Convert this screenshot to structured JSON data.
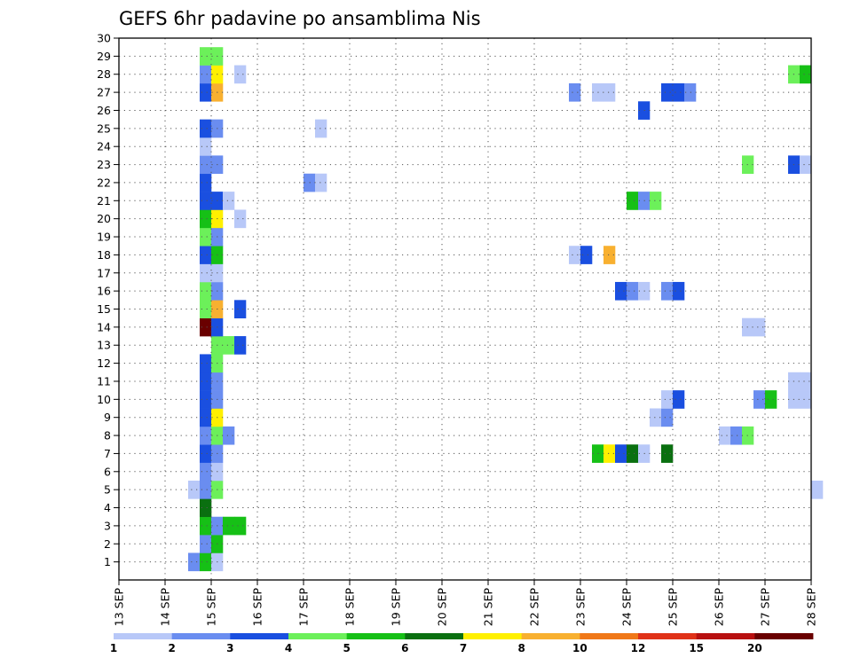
{
  "chart_data": {
    "type": "heatmap",
    "title": "GEFS 6hr padavine po ansamblima Nis",
    "x_ticks": [
      "13 SEP",
      "14 SEP",
      "15 SEP",
      "16 SEP",
      "17 SEP",
      "18 SEP",
      "19 SEP",
      "20 SEP",
      "21 SEP",
      "22 SEP",
      "23 SEP",
      "24 SEP",
      "25 SEP",
      "26 SEP",
      "27 SEP",
      "28 SEP"
    ],
    "xlim_days": [
      13,
      28
    ],
    "ylim": [
      0,
      30
    ],
    "y_ticks": [
      1,
      2,
      3,
      4,
      5,
      6,
      7,
      8,
      9,
      10,
      11,
      12,
      13,
      14,
      15,
      16,
      17,
      18,
      19,
      20,
      21,
      22,
      23,
      24,
      25,
      26,
      27,
      28,
      29,
      30
    ],
    "grid": "dotted",
    "time_step_hours": 6,
    "colorbar": {
      "labels": [
        "1",
        "2",
        "3",
        "4",
        "5",
        "6",
        "7",
        "8",
        "10",
        "12",
        "15",
        "20"
      ],
      "colors": [
        "#b8c8f8",
        "#6a8df0",
        "#1a4fe0",
        "#6cf05a",
        "#16c016",
        "#0a7010",
        "#fff000",
        "#f8b030",
        "#f07818",
        "#e03218",
        "#b81010",
        "#6a0000"
      ]
    },
    "cells": [
      {
        "day": 14.5,
        "y": 1,
        "c": 1
      },
      {
        "day": 14.75,
        "y": 1,
        "c": 4
      },
      {
        "day": 15.0,
        "y": 1,
        "c": 0
      },
      {
        "day": 14.75,
        "y": 2,
        "c": 1
      },
      {
        "day": 15.0,
        "y": 2,
        "c": 4
      },
      {
        "day": 14.75,
        "y": 3,
        "c": 4
      },
      {
        "day": 15.0,
        "y": 3,
        "c": 1
      },
      {
        "day": 15.25,
        "y": 3,
        "c": 4
      },
      {
        "day": 15.5,
        "y": 3,
        "c": 4
      },
      {
        "day": 14.75,
        "y": 4,
        "c": 5
      },
      {
        "day": 14.5,
        "y": 5,
        "c": 0
      },
      {
        "day": 14.75,
        "y": 5,
        "c": 1
      },
      {
        "day": 15.0,
        "y": 5,
        "c": 3
      },
      {
        "day": 28.0,
        "y": 5,
        "c": 0
      },
      {
        "day": 14.75,
        "y": 6,
        "c": 1
      },
      {
        "day": 15.0,
        "y": 6,
        "c": 0
      },
      {
        "day": 14.75,
        "y": 7,
        "c": 2
      },
      {
        "day": 15.0,
        "y": 7,
        "c": 1
      },
      {
        "day": 23.25,
        "y": 7,
        "c": 4
      },
      {
        "day": 23.5,
        "y": 7,
        "c": 6
      },
      {
        "day": 23.75,
        "y": 7,
        "c": 2
      },
      {
        "day": 24.0,
        "y": 7,
        "c": 5
      },
      {
        "day": 24.25,
        "y": 7,
        "c": 0
      },
      {
        "day": 24.75,
        "y": 7,
        "c": 5
      },
      {
        "day": 14.75,
        "y": 8,
        "c": 1
      },
      {
        "day": 15.0,
        "y": 8,
        "c": 3
      },
      {
        "day": 15.25,
        "y": 8,
        "c": 1
      },
      {
        "day": 26.0,
        "y": 8,
        "c": 0
      },
      {
        "day": 26.25,
        "y": 8,
        "c": 1
      },
      {
        "day": 26.5,
        "y": 8,
        "c": 3
      },
      {
        "day": 14.75,
        "y": 9,
        "c": 2
      },
      {
        "day": 15.0,
        "y": 9,
        "c": 6
      },
      {
        "day": 24.5,
        "y": 9,
        "c": 0
      },
      {
        "day": 24.75,
        "y": 9,
        "c": 1
      },
      {
        "day": 14.75,
        "y": 10,
        "c": 2
      },
      {
        "day": 15.0,
        "y": 10,
        "c": 1
      },
      {
        "day": 24.75,
        "y": 10,
        "c": 0
      },
      {
        "day": 25.0,
        "y": 10,
        "c": 2
      },
      {
        "day": 26.75,
        "y": 10,
        "c": 1
      },
      {
        "day": 27.0,
        "y": 10,
        "c": 4
      },
      {
        "day": 27.5,
        "y": 10,
        "c": 0
      },
      {
        "day": 27.75,
        "y": 10,
        "c": 0
      },
      {
        "day": 14.75,
        "y": 11,
        "c": 2
      },
      {
        "day": 15.0,
        "y": 11,
        "c": 1
      },
      {
        "day": 27.5,
        "y": 11,
        "c": 0
      },
      {
        "day": 27.75,
        "y": 11,
        "c": 0
      },
      {
        "day": 14.75,
        "y": 12,
        "c": 2
      },
      {
        "day": 15.0,
        "y": 12,
        "c": 3
      },
      {
        "day": 15.0,
        "y": 13,
        "c": 3
      },
      {
        "day": 15.25,
        "y": 13,
        "c": 3
      },
      {
        "day": 15.5,
        "y": 13,
        "c": 2
      },
      {
        "day": 14.75,
        "y": 14,
        "c": 11
      },
      {
        "day": 15.0,
        "y": 14,
        "c": 2
      },
      {
        "day": 26.5,
        "y": 14,
        "c": 0
      },
      {
        "day": 26.75,
        "y": 14,
        "c": 0
      },
      {
        "day": 14.75,
        "y": 15,
        "c": 3
      },
      {
        "day": 15.0,
        "y": 15,
        "c": 7
      },
      {
        "day": 15.5,
        "y": 15,
        "c": 2
      },
      {
        "day": 14.75,
        "y": 16,
        "c": 3
      },
      {
        "day": 15.0,
        "y": 16,
        "c": 1
      },
      {
        "day": 23.75,
        "y": 16,
        "c": 2
      },
      {
        "day": 24.0,
        "y": 16,
        "c": 1
      },
      {
        "day": 24.25,
        "y": 16,
        "c": 0
      },
      {
        "day": 24.75,
        "y": 16,
        "c": 1
      },
      {
        "day": 25.0,
        "y": 16,
        "c": 2
      },
      {
        "day": 14.75,
        "y": 17,
        "c": 0
      },
      {
        "day": 15.0,
        "y": 17,
        "c": 0
      },
      {
        "day": 14.75,
        "y": 18,
        "c": 2
      },
      {
        "day": 15.0,
        "y": 18,
        "c": 4
      },
      {
        "day": 22.75,
        "y": 18,
        "c": 0
      },
      {
        "day": 23.0,
        "y": 18,
        "c": 2
      },
      {
        "day": 23.5,
        "y": 18,
        "c": 7
      },
      {
        "day": 14.75,
        "y": 19,
        "c": 3
      },
      {
        "day": 15.0,
        "y": 19,
        "c": 1
      },
      {
        "day": 14.75,
        "y": 20,
        "c": 4
      },
      {
        "day": 15.0,
        "y": 20,
        "c": 6
      },
      {
        "day": 15.5,
        "y": 20,
        "c": 0
      },
      {
        "day": 14.75,
        "y": 21,
        "c": 2
      },
      {
        "day": 15.0,
        "y": 21,
        "c": 2
      },
      {
        "day": 15.25,
        "y": 21,
        "c": 0
      },
      {
        "day": 24.0,
        "y": 21,
        "c": 4
      },
      {
        "day": 24.25,
        "y": 21,
        "c": 1
      },
      {
        "day": 24.5,
        "y": 21,
        "c": 3
      },
      {
        "day": 14.75,
        "y": 22,
        "c": 2
      },
      {
        "day": 17.0,
        "y": 22,
        "c": 1
      },
      {
        "day": 17.25,
        "y": 22,
        "c": 0
      },
      {
        "day": 14.75,
        "y": 23,
        "c": 1
      },
      {
        "day": 15.0,
        "y": 23,
        "c": 1
      },
      {
        "day": 26.5,
        "y": 23,
        "c": 3
      },
      {
        "day": 27.5,
        "y": 23,
        "c": 2
      },
      {
        "day": 27.75,
        "y": 23,
        "c": 0
      },
      {
        "day": 14.75,
        "y": 24,
        "c": 0
      },
      {
        "day": 14.75,
        "y": 25,
        "c": 2
      },
      {
        "day": 15.0,
        "y": 25,
        "c": 1
      },
      {
        "day": 17.25,
        "y": 25,
        "c": 0
      },
      {
        "day": 24.25,
        "y": 26,
        "c": 2
      },
      {
        "day": 14.75,
        "y": 27,
        "c": 2
      },
      {
        "day": 15.0,
        "y": 27,
        "c": 7
      },
      {
        "day": 22.75,
        "y": 27,
        "c": 1
      },
      {
        "day": 23.25,
        "y": 27,
        "c": 0
      },
      {
        "day": 23.5,
        "y": 27,
        "c": 0
      },
      {
        "day": 24.75,
        "y": 27,
        "c": 2
      },
      {
        "day": 25.0,
        "y": 27,
        "c": 2
      },
      {
        "day": 25.25,
        "y": 27,
        "c": 1
      },
      {
        "day": 14.75,
        "y": 28,
        "c": 1
      },
      {
        "day": 15.0,
        "y": 28,
        "c": 6
      },
      {
        "day": 15.5,
        "y": 28,
        "c": 0
      },
      {
        "day": 27.5,
        "y": 28,
        "c": 3
      },
      {
        "day": 27.75,
        "y": 28,
        "c": 4
      },
      {
        "day": 14.75,
        "y": 29,
        "c": 3
      },
      {
        "day": 15.0,
        "y": 29,
        "c": 3
      }
    ]
  }
}
